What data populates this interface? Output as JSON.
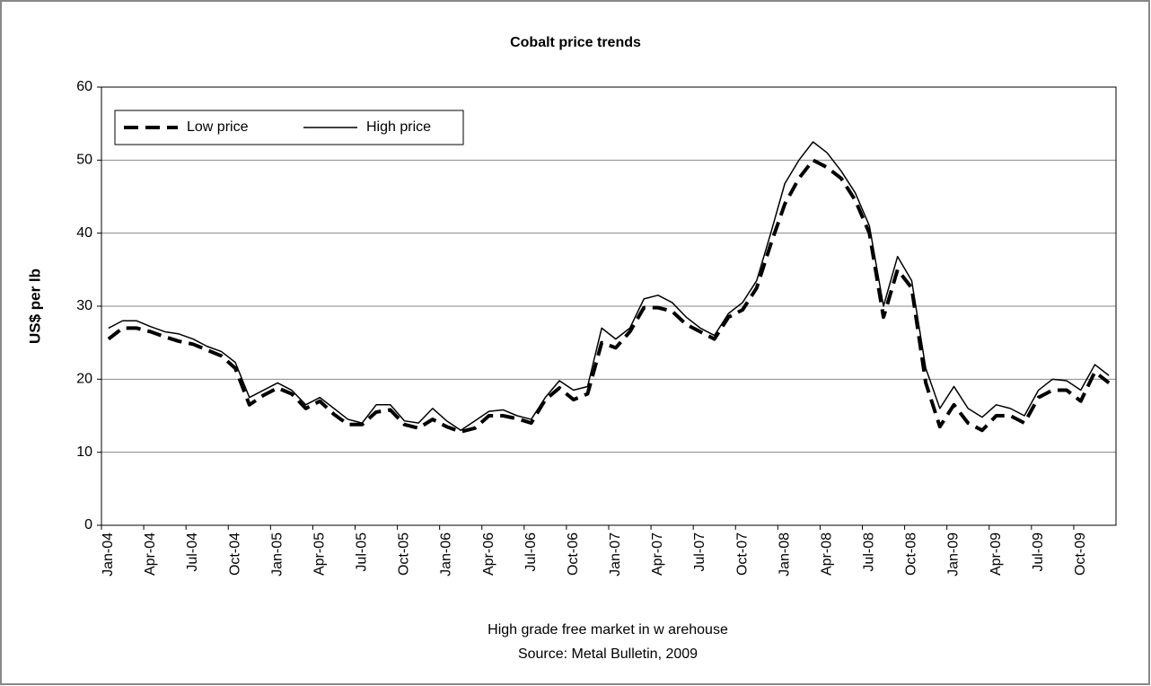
{
  "chart_data": {
    "type": "line",
    "title": "Cobalt price trends",
    "y_label": "US$ per lb",
    "notes": [
      "High grade free market in w arehouse",
      "Source: Metal Bulletin, 2009"
    ],
    "categories": [
      "Jan-04",
      null,
      null,
      "Apr-04",
      null,
      null,
      "Jul-04",
      null,
      null,
      "Oct-04",
      null,
      null,
      "Jan-05",
      null,
      null,
      "Apr-05",
      null,
      null,
      "Jul-05",
      null,
      null,
      "Oct-05",
      null,
      null,
      "Jan-06",
      null,
      null,
      "Apr-06",
      null,
      null,
      "Jul-06",
      null,
      null,
      "Oct-06",
      null,
      null,
      "Jan-07",
      null,
      null,
      "Apr-07",
      null,
      null,
      "Jul-07",
      null,
      null,
      "Oct-07",
      null,
      null,
      "Jan-08",
      null,
      null,
      "Apr-08",
      null,
      null,
      "Jul-08",
      null,
      null,
      "Oct-08",
      null,
      null,
      "Jan-09",
      null,
      null,
      "Apr-09",
      null,
      null,
      "Jul-09",
      null,
      null,
      "Oct-09",
      null,
      null
    ],
    "series": [
      {
        "name": "Low price",
        "color": "#000000",
        "dashed": true,
        "values": [
          25.5,
          27,
          27,
          26.5,
          25.8,
          25.2,
          24.8,
          24,
          23.2,
          21.5,
          16.5,
          17.8,
          18.8,
          18,
          16,
          17,
          15.2,
          13.8,
          13.8,
          15.5,
          15.8,
          13.8,
          13.3,
          14.5,
          13.5,
          12.8,
          13.3,
          15,
          15,
          14.6,
          14,
          17.2,
          18.8,
          17.2,
          18,
          25,
          24.3,
          26.5,
          29.8,
          29.8,
          29.3,
          27.5,
          26.5,
          25.5,
          28.5,
          29.5,
          32.5,
          38.5,
          44,
          47.5,
          50,
          49,
          47.5,
          44.5,
          40,
          28.5,
          35,
          32.5,
          19.5,
          13.5,
          16.5,
          14,
          13,
          15,
          15,
          14,
          17.5,
          18.5,
          18.5,
          17,
          21,
          19.5
        ]
      },
      {
        "name": "High price",
        "color": "#000000",
        "dashed": false,
        "values": [
          27,
          28,
          28,
          27.2,
          26.5,
          26.2,
          25.5,
          24.5,
          23.8,
          22.3,
          17.5,
          18.5,
          19.5,
          18.5,
          16.5,
          17.5,
          16,
          14.5,
          14,
          16.5,
          16.5,
          14.3,
          14,
          16,
          14.3,
          13,
          14.3,
          15.6,
          15.8,
          15,
          14.5,
          17.5,
          19.8,
          18.5,
          19,
          27,
          25.5,
          27,
          31,
          31.5,
          30.5,
          28.5,
          27,
          26,
          29,
          30.5,
          33.5,
          40,
          46.8,
          50,
          52.5,
          51,
          48.5,
          45.5,
          41,
          30,
          36.8,
          33.5,
          21.5,
          16,
          19,
          16,
          14.8,
          16.5,
          16,
          15,
          18.5,
          20,
          19.8,
          18.5,
          22,
          20.5
        ]
      }
    ],
    "ylim": [
      0,
      60
    ],
    "yticks": [
      0,
      10,
      20,
      30,
      40,
      50,
      60
    ],
    "grid": true,
    "legend": "upper left"
  }
}
